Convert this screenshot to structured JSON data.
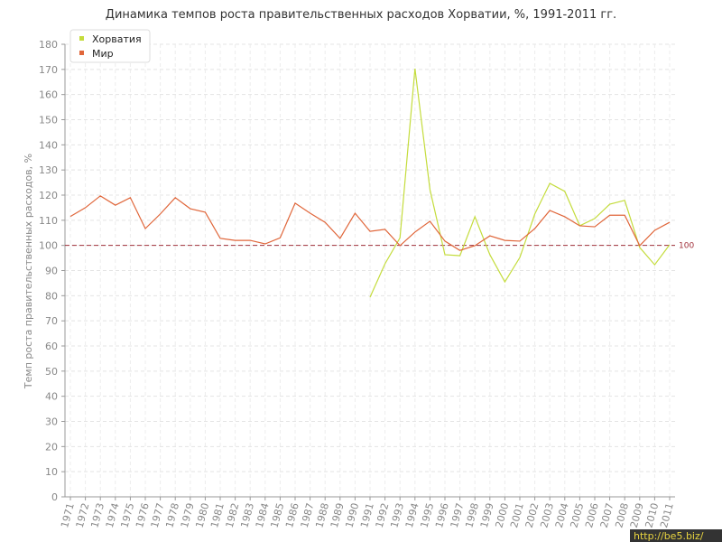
{
  "chart_data": {
    "type": "line",
    "title": "Динамика темпов роста правительственных расходов Хорватии, %, 1991-2011 гг.",
    "y_label": "Темп роста правительственных расходов, %",
    "categories": [
      "1971",
      "1972",
      "1973",
      "1974",
      "1975",
      "1976",
      "1977",
      "1978",
      "1979",
      "1980",
      "1981",
      "1982",
      "1983",
      "1984",
      "1985",
      "1986",
      "1987",
      "1988",
      "1989",
      "1990",
      "1991",
      "1992",
      "1993",
      "1994",
      "1995",
      "1996",
      "1997",
      "1998",
      "1999",
      "2000",
      "2001",
      "2002",
      "2003",
      "2004",
      "2005",
      "2006",
      "2007",
      "2008",
      "2009",
      "2010",
      "2011"
    ],
    "series": [
      {
        "name": "Хорватия",
        "color": "#c4dc3c",
        "values": [
          null,
          null,
          null,
          null,
          null,
          null,
          null,
          null,
          null,
          null,
          null,
          null,
          null,
          null,
          null,
          null,
          null,
          null,
          null,
          null,
          79.4,
          92.7,
          103,
          170.3,
          122.2,
          96.3,
          95.9,
          111.4,
          96.3,
          85.5,
          95.2,
          112.5,
          124.7,
          121.5,
          107.8,
          110.7,
          116.4,
          117.9,
          99.2,
          92.3,
          100.3
        ]
      },
      {
        "name": "Мир",
        "color": "#e0663a",
        "values": [
          111.5,
          115,
          119.7,
          116,
          119,
          106.7,
          112.5,
          119,
          114.6,
          113.2,
          102.8,
          102,
          102,
          100.6,
          103,
          116.8,
          112.8,
          109.2,
          102.8,
          112.8,
          105.6,
          106.4,
          99.9,
          105.3,
          109.6,
          101.7,
          98,
          99.9,
          103.8,
          102,
          101.7,
          106.7,
          113.9,
          111.4,
          107.8,
          107.4,
          112,
          112,
          99.9,
          106,
          109.2
        ]
      }
    ],
    "ylim": [
      0,
      180
    ],
    "yticks": [
      0,
      10,
      20,
      30,
      40,
      50,
      60,
      70,
      80,
      90,
      100,
      110,
      120,
      130,
      140,
      150,
      160,
      170,
      180
    ],
    "grid": true,
    "reference_line": 100,
    "reference_color": "#a0303a",
    "legend": "top-left",
    "watermark": "http://be5.biz/"
  }
}
